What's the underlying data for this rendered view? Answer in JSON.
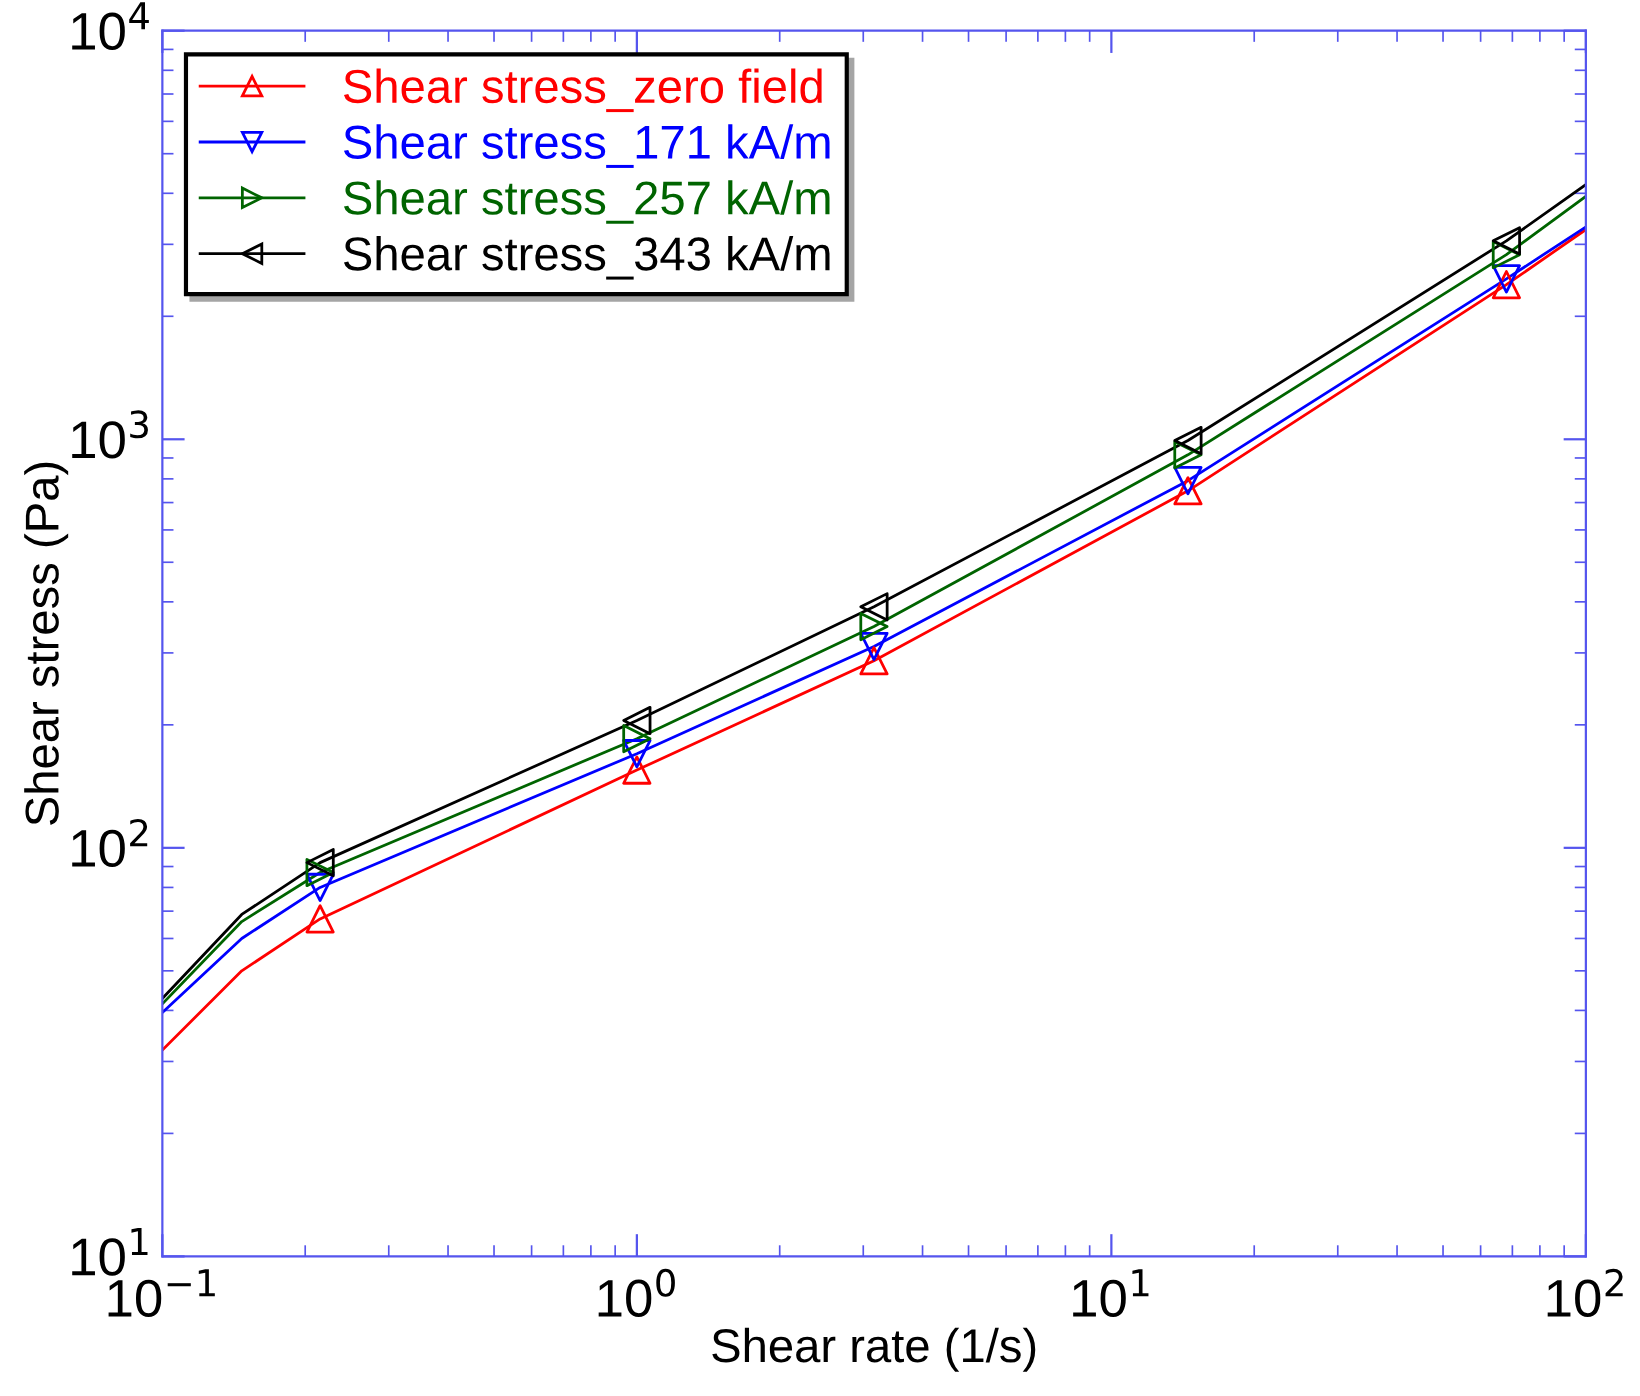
{
  "chart_data": {
    "type": "line",
    "xlabel": "Shear rate (1/s)",
    "ylabel": "Shear stress (Pa)",
    "log": "xy",
    "xlim": [
      0.1,
      100
    ],
    "ylim": [
      10,
      10000
    ],
    "xticks": [
      {
        "value": 0.1,
        "label": "10$^{−1}$"
      },
      {
        "value": 1,
        "label": "10$^{0}$"
      },
      {
        "value": 10,
        "label": "10$^{1}$"
      },
      {
        "value": 100,
        "label": "10$^{2}$"
      }
    ],
    "yticks": [
      {
        "value": 10,
        "label": "10$^{1}$"
      },
      {
        "value": 100,
        "label": "10$^{2}$"
      },
      {
        "value": 1000,
        "label": "10$^{3}$"
      },
      {
        "value": 10000,
        "label": "10$^{4}$"
      }
    ],
    "grid": false,
    "legend": "top left",
    "series": [
      {
        "type": "line",
        "name": "Shear stress_zero field",
        "color": "#ff0000",
        "marker": "none",
        "x": [
          0.1,
          0.147,
          0.215,
          1,
          3.16,
          14.5,
          68,
          100
        ],
        "values": [
          32,
          50,
          67,
          155,
          287,
          748,
          2390,
          3260
        ]
      },
      {
        "type": "line",
        "name": "Shear stress_171 kA/m",
        "color": "#0000ff",
        "marker": "none",
        "x": [
          0.1,
          0.147,
          0.215,
          1,
          3.16,
          14.5,
          68,
          100
        ],
        "values": [
          39.5,
          60,
          80,
          170,
          311,
          792,
          2470,
          3310
        ]
      },
      {
        "type": "line",
        "name": "Shear stress_257 kA/m",
        "color": "#006400",
        "marker": "none",
        "x": [
          0.1,
          0.147,
          0.215,
          1,
          3.16,
          14.5,
          68,
          100
        ],
        "values": [
          41.5,
          66,
          87,
          185,
          348,
          916,
          2830,
          3930
        ]
      },
      {
        "type": "line",
        "name": "Shear stress_343 kA/m",
        "color": "#000000",
        "marker": "none",
        "x": [
          0.1,
          0.147,
          0.215,
          1,
          3.16,
          14.5,
          68,
          100
        ],
        "values": [
          42.8,
          68.7,
          92,
          205,
          389,
          993,
          3060,
          4200
        ]
      },
      {
        "type": "scatter",
        "color": "#ff0000",
        "marker": "triangle-up",
        "x": [
          0.215,
          1,
          3.16,
          14.5,
          68
        ],
        "values": [
          67,
          155,
          287,
          748,
          2390
        ]
      },
      {
        "type": "scatter",
        "color": "#0000ff",
        "marker": "triangle-down",
        "x": [
          0.215,
          1,
          3.16,
          14.5,
          68
        ],
        "values": [
          80,
          170,
          311,
          792,
          2470
        ]
      },
      {
        "type": "scatter",
        "color": "#006400",
        "marker": "triangle-right",
        "x": [
          0.215,
          1,
          3.16,
          14.5,
          68
        ],
        "values": [
          87,
          185,
          348,
          916,
          2830
        ]
      },
      {
        "type": "scatter",
        "color": "#000000",
        "marker": "triangle-left",
        "x": [
          0.215,
          1,
          3.16,
          14.5,
          68
        ],
        "values": [
          92,
          205,
          389,
          993,
          3060
        ]
      }
    ]
  }
}
